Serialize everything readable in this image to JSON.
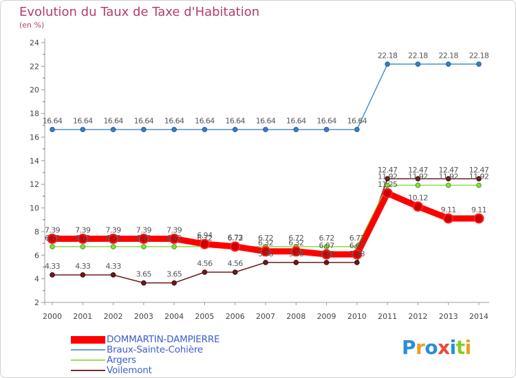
{
  "header": {
    "title": "Evolution du Taux de Taxe d'Habitation",
    "subtitle": "(en %)"
  },
  "chart_data": {
    "type": "line",
    "title": "Evolution du Taux de Taxe d'Habitation",
    "ylabel": "(en %)",
    "xlabel": "",
    "ylim": [
      2,
      24
    ],
    "yticks": [
      2,
      4,
      6,
      8,
      10,
      12,
      14,
      16,
      18,
      20,
      22,
      24
    ],
    "x": [
      "2000",
      "2001",
      "2002",
      "2003",
      "2004",
      "2005",
      "2006",
      "2007",
      "2008",
      "2009",
      "2010",
      "2011",
      "2012",
      "2013",
      "2014"
    ],
    "grid": false,
    "legend_position": "bottom-left",
    "series": [
      {
        "name": "DOMMARTIN-DAMPIERRE",
        "color": "#ff0000",
        "values": [
          7.39,
          7.39,
          7.39,
          7.39,
          7.39,
          6.94,
          6.73,
          6.32,
          6.32,
          6.07,
          6.07,
          11.25,
          10.12,
          9.11,
          9.11
        ],
        "labels": [
          "7.39",
          "7.39",
          "7.39",
          "7.39",
          "7.39",
          "6.94",
          "6.73",
          "6.32",
          "6.32",
          "6.07",
          "6.07",
          "11.25",
          "10.12",
          "9.11",
          "9.11"
        ]
      },
      {
        "name": "Braux-Sainte-Cohière",
        "color": "#4a90d0",
        "values": [
          16.64,
          16.64,
          16.64,
          16.64,
          16.64,
          16.64,
          16.64,
          16.64,
          16.64,
          16.64,
          16.64,
          22.18,
          22.18,
          22.18,
          22.18
        ],
        "labels": [
          "16.64",
          "16.64",
          "16.64",
          "16.64",
          "16.64",
          "16.64",
          "16.64",
          "16.64",
          "16.64",
          "16.64",
          "16.64",
          "22.18",
          "22.18",
          "22.18",
          "22.18"
        ]
      },
      {
        "name": "Argers",
        "color": "#88dd44",
        "values": [
          6.72,
          6.72,
          6.72,
          6.72,
          6.72,
          6.72,
          6.72,
          6.72,
          6.72,
          6.72,
          6.72,
          11.92,
          11.92,
          11.92,
          11.92
        ],
        "labels": [
          "6.72",
          "6.72",
          "6.72",
          "6.72",
          "6.72",
          "6.72",
          "6.72",
          "6.72",
          "6.72",
          "6.72",
          "6.72",
          "11.92",
          "11.92",
          "11.92",
          "11.92"
        ]
      },
      {
        "name": "Voilemont",
        "color": "#6b1a1a",
        "values": [
          4.33,
          4.33,
          4.33,
          3.65,
          3.65,
          4.56,
          4.56,
          5.38,
          5.38,
          5.38,
          5.38,
          12.47,
          12.47,
          12.47,
          12.47
        ],
        "labels": [
          "4.33",
          "4.33",
          "4.33",
          "3.65",
          "3.65",
          "4.56",
          "4.56",
          "5.38",
          "5.38",
          "5.38",
          "5.38",
          "12.47",
          "12.47",
          "12.47",
          "12.47"
        ]
      }
    ]
  },
  "logo": {
    "text": "Proxiti",
    "letter_colors": [
      "#2a8fd8",
      "#e8a020",
      "#2a8fd8",
      "#e84a3a",
      "#2a8fd8",
      "#88cc22",
      "#e8a020"
    ]
  }
}
